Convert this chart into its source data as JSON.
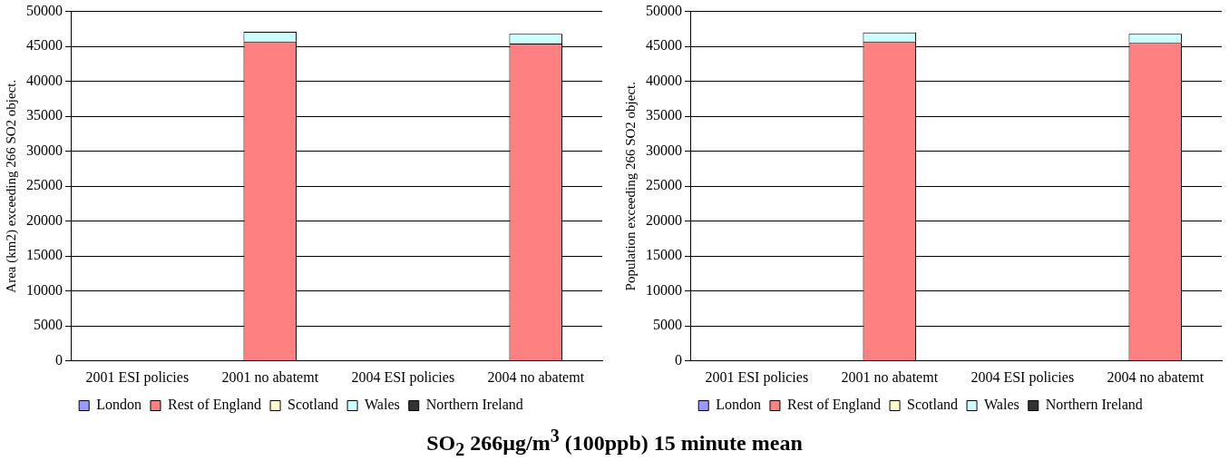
{
  "chart_data": [
    {
      "type": "bar",
      "title": "SO$_{2}$ 266µg/m$^{3}$ (100ppb) 15 minute mean",
      "ylabel": "Area (km2) exceeding 266 SO2 object.",
      "categories": [
        "2001 ESI policies",
        "2001 no abatemt",
        "2004 ESI policies",
        "2004 no abatemt"
      ],
      "stacked": true,
      "ylim": [
        0,
        50000
      ],
      "yticks": [
        0,
        5000,
        10000,
        15000,
        20000,
        25000,
        30000,
        35000,
        40000,
        45000,
        50000
      ],
      "grid": "y",
      "legend": "bottom",
      "series": [
        {
          "name": "London",
          "color": "#9999ff",
          "values": [
            0,
            0,
            0,
            0
          ]
        },
        {
          "name": "Rest of England",
          "color": "#ff8080",
          "values": [
            0,
            45700,
            0,
            45400
          ]
        },
        {
          "name": "Scotland",
          "color": "#ffffcc",
          "values": [
            0,
            0,
            0,
            0
          ]
        },
        {
          "name": "Wales",
          "color": "#ccffff",
          "values": [
            0,
            1400,
            0,
            1400
          ]
        },
        {
          "name": "Northern Ireland",
          "color": "#333333",
          "values": [
            0,
            0,
            0,
            0
          ]
        }
      ]
    },
    {
      "type": "bar",
      "ylabel": "Population exceeding 266 SO2 object.",
      "categories": [
        "2001 ESI policies",
        "2001 no abatemt",
        "2004 ESI policies",
        "2004 no abatemt"
      ],
      "stacked": true,
      "ylim": [
        0,
        50000
      ],
      "yticks": [
        0,
        5000,
        10000,
        15000,
        20000,
        25000,
        30000,
        35000,
        40000,
        45000,
        50000
      ],
      "grid": "y",
      "legend": "bottom",
      "series": [
        {
          "name": "London",
          "color": "#9999ff",
          "values": [
            0,
            0,
            0,
            0
          ]
        },
        {
          "name": "Rest of England",
          "color": "#ff8080",
          "values": [
            0,
            45700,
            0,
            45500
          ]
        },
        {
          "name": "Scotland",
          "color": "#ffffcc",
          "values": [
            0,
            0,
            0,
            0
          ]
        },
        {
          "name": "Wales",
          "color": "#ccffff",
          "values": [
            0,
            1300,
            0,
            1300
          ]
        },
        {
          "name": "Northern Ireland",
          "color": "#333333",
          "values": [
            0,
            0,
            0,
            0
          ]
        }
      ]
    }
  ]
}
